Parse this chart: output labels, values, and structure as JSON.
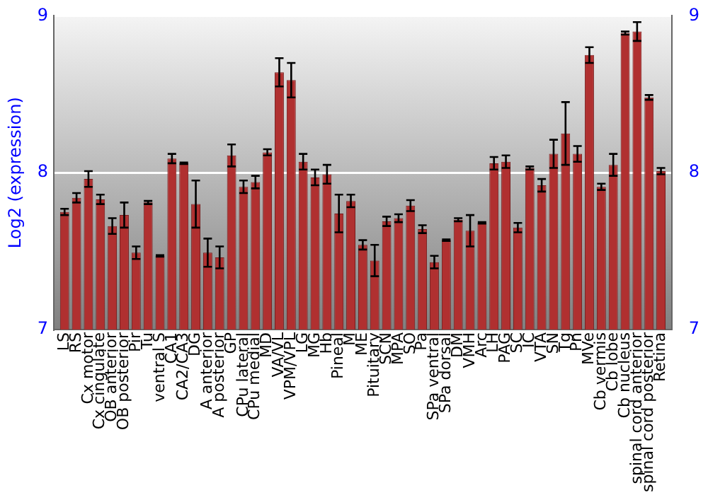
{
  "chart_data": {
    "type": "bar",
    "ylabel": "Log2 (expression)",
    "categories": [
      "LS",
      "RS",
      "Cx motor",
      "Cx cingulate",
      "OB anterior",
      "OB posterior",
      "Pir",
      "Tu",
      "ventral S",
      "CA1",
      "CA2/CA3",
      "DG",
      "A anterior",
      "A posterior",
      "GP",
      "CPu lateral",
      "CPu medial",
      "MD",
      "VA/VL",
      "VPM/VPL",
      "LG",
      "MG",
      "Hb",
      "Pineal",
      "M",
      "ME",
      "Pituitary",
      "SCN",
      "MPA",
      "SO",
      "Pa",
      "SPa ventral",
      "SPa dorsal",
      "DM",
      "VMH",
      "Arc",
      "LH",
      "PAG",
      "SC",
      "IC",
      "VTA",
      "SN",
      "Tg",
      "Pn",
      "MVe",
      "Cb vermis",
      "Cb lobe",
      "Cb nucleus",
      "spinal cord anterior",
      "spinal cord posterior",
      "Retina"
    ],
    "values": [
      7.75,
      7.84,
      7.96,
      7.83,
      7.66,
      7.73,
      7.49,
      7.81,
      7.47,
      8.09,
      8.06,
      7.8,
      7.49,
      7.46,
      8.11,
      7.91,
      7.94,
      8.13,
      8.64,
      8.59,
      8.07,
      7.97,
      7.99,
      7.74,
      7.82,
      7.54,
      7.44,
      7.69,
      7.71,
      7.79,
      7.64,
      7.43,
      7.57,
      7.7,
      7.63,
      7.68,
      8.06,
      8.07,
      7.65,
      8.03,
      7.92,
      8.12,
      8.25,
      8.12,
      8.75,
      7.91,
      8.05,
      8.89,
      8.9,
      8.48,
      8.01
    ],
    "errors": [
      0.02,
      0.03,
      0.05,
      0.03,
      0.05,
      0.08,
      0.04,
      0.01,
      0.005,
      0.03,
      0.005,
      0.15,
      0.09,
      0.07,
      0.07,
      0.04,
      0.04,
      0.02,
      0.09,
      0.11,
      0.05,
      0.05,
      0.06,
      0.12,
      0.04,
      0.03,
      0.1,
      0.03,
      0.025,
      0.035,
      0.025,
      0.04,
      0.005,
      0.01,
      0.1,
      0.005,
      0.04,
      0.04,
      0.03,
      0.01,
      0.04,
      0.09,
      0.2,
      0.05,
      0.05,
      0.02,
      0.07,
      0.01,
      0.06,
      0.015,
      0.02
    ],
    "color": "#b03030",
    "ylim": [
      7,
      9
    ],
    "yticks": [
      7,
      8,
      9
    ],
    "y2lim": [
      7,
      9
    ],
    "y2ticks": [
      7,
      8,
      9
    ],
    "grid": "y"
  }
}
